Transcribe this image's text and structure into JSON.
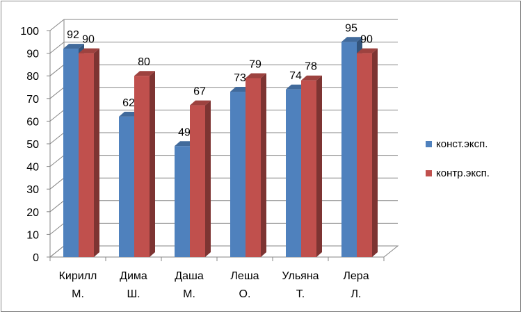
{
  "chart_data": {
    "type": "bar",
    "categories": [
      "Кирилл М.",
      "Дима Ш.",
      "Даша М.",
      "Леша О.",
      "Ульяна Т.",
      "Лера Л."
    ],
    "series": [
      {
        "name": "конст.эксп.",
        "values": [
          92,
          62,
          49,
          73,
          74,
          95
        ],
        "color": "#4F81BD"
      },
      {
        "name": "контр.эксп.",
        "values": [
          90,
          80,
          67,
          79,
          78,
          90
        ],
        "color": "#C0504D"
      }
    ],
    "title": "",
    "xlabel": "",
    "ylabel": "",
    "ylim": [
      0,
      100
    ],
    "yticks": [
      0,
      10,
      20,
      30,
      40,
      50,
      60,
      70,
      80,
      90,
      100
    ],
    "grid": true,
    "legend_position": "right",
    "style": "3d-clustered-column"
  }
}
